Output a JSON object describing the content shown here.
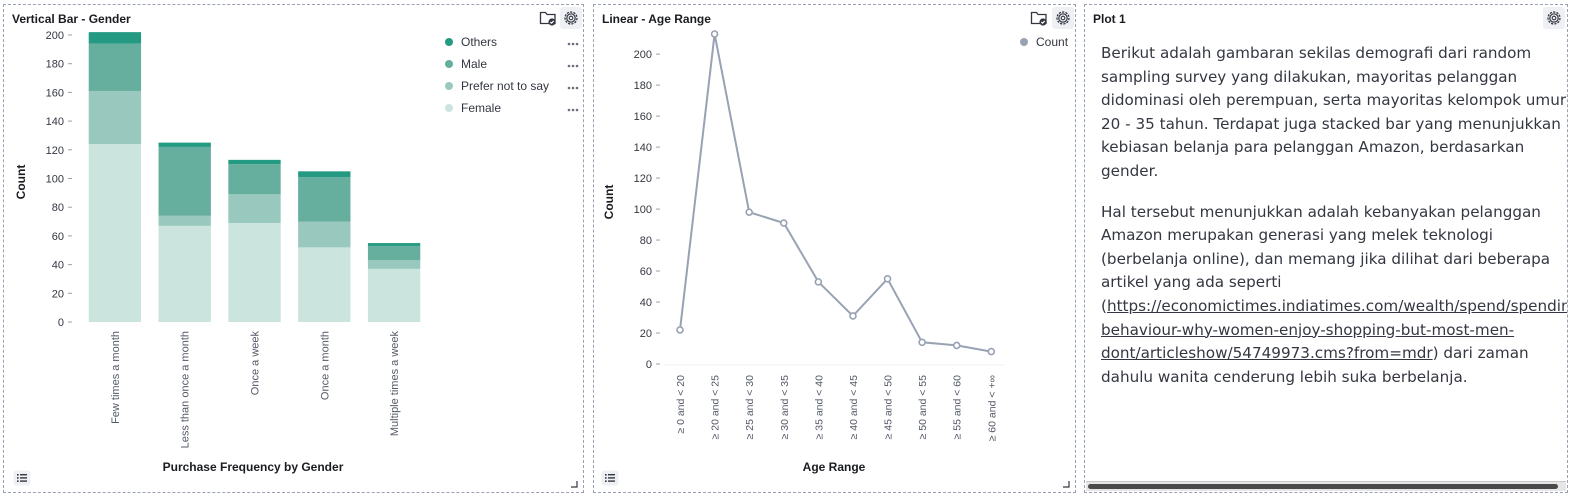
{
  "panels": {
    "gender": {
      "title": "Vertical Bar - Gender",
      "chart_data": {
        "type": "bar",
        "stacked": true,
        "title": "",
        "xlabel": "Purchase Frequency by Gender",
        "ylabel": "Count",
        "categories": [
          "Few times a month",
          "Less than once a month",
          "Once a week",
          "Once a month",
          "Multiple times a week"
        ],
        "series": [
          {
            "name": "Female",
            "color": "#cce4de",
            "values": [
              124,
              67,
              69,
              52,
              37
            ]
          },
          {
            "name": "Prefer not to say",
            "color": "#99c9be",
            "values": [
              37,
              7,
              20,
              18,
              6
            ]
          },
          {
            "name": "Male",
            "color": "#66ae9e",
            "values": [
              33,
              48,
              21,
              31,
              10
            ]
          },
          {
            "name": "Others",
            "color": "#259a82",
            "values": [
              8,
              3,
              3,
              4,
              2
            ]
          }
        ],
        "legend_order": [
          "Others",
          "Male",
          "Prefer not to say",
          "Female"
        ],
        "yticks": [
          0,
          20,
          40,
          60,
          80,
          100,
          120,
          140,
          160,
          180,
          200
        ],
        "ylim": [
          0,
          200
        ],
        "grid": false,
        "legend_position": "top-right"
      }
    },
    "age": {
      "title": "Linear - Age Range",
      "chart_data": {
        "type": "line",
        "title": "",
        "xlabel": "Age Range",
        "ylabel": "Count",
        "categories": [
          "≥ 0 and < 20",
          "≥ 20 and < 25",
          "≥ 25 and < 30",
          "≥ 30 and < 35",
          "≥ 35 and < 40",
          "≥ 40 and < 45",
          "≥ 45 and < 50",
          "≥ 50 and < 55",
          "≥ 55 and < 60",
          "≥ 60 and < +∞"
        ],
        "series": [
          {
            "name": "Count",
            "color": "#98a2b3",
            "values": [
              22,
              213,
              98,
              91,
              53,
              31,
              55,
              14,
              12,
              8
            ]
          }
        ],
        "yticks": [
          0,
          20,
          40,
          60,
          80,
          100,
          120,
          140,
          160,
          180,
          200
        ],
        "ylim": [
          0,
          213
        ],
        "grid": false,
        "legend_position": "top-right"
      }
    },
    "plot1": {
      "title": "Plot 1",
      "paragraph1": [
        "Berikut adalah gambaran sekilas demografi dari random",
        "sampling survey yang dilakukan, mayoritas pelanggan",
        "didominasi oleh perempuan, serta mayoritas kelompok umur",
        "20 - 35 tahun. Terdapat juga stacked bar yang menunjukkan",
        "kebiasan belanja para pelanggan Amazon, berdasarkan",
        "gender."
      ],
      "paragraph2": [
        "Hal tersebut menunjukkan adalah kebanyakan pelanggan",
        "Amazon merupakan generasi yang melek teknologi",
        "(berbelanja online), dan memang jika dilihat dari beberapa",
        "artikel yang ada seperti"
      ],
      "link_open": "(",
      "link_lines": [
        "https://economictimes.indiatimes.com/wealth/spend/spending-",
        "behaviour-why-women-enjoy-shopping-but-most-men-",
        "dont/articleshow/54749973.cms?from=mdr"
      ],
      "after_link": ") dari zaman",
      "last_line": "dahulu wanita cenderung lebih suka berbelanja."
    }
  },
  "icons": {
    "folder": "folder-check-icon",
    "gear": "gear-icon",
    "legend_toggle": "list-icon",
    "resize": "resize-handle-icon",
    "more": "more-dots-icon"
  }
}
